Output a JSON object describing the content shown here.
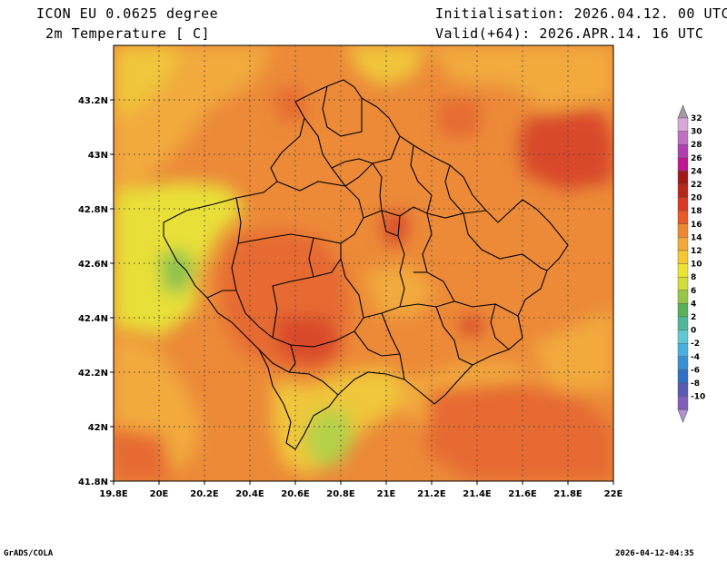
{
  "header": {
    "model": "ICON EU 0.0625 degree",
    "variable": "2m Temperature [ C]",
    "initialisation": "Initialisation: 2026.04.12. 00 UTC",
    "valid": "Valid(+64): 2026.APR.14. 16 UTC"
  },
  "footer": {
    "left": "GrADS/COLA",
    "right": "2026-04-12-04:35"
  },
  "map": {
    "lon_ticks": [
      "19.8E",
      "20E",
      "20.2E",
      "20.4E",
      "20.6E",
      "20.8E",
      "21E",
      "21.2E",
      "21.4E",
      "21.6E",
      "21.8E",
      "22E"
    ],
    "lat_ticks": [
      "43.2N",
      "43N",
      "42.8N",
      "42.6N",
      "42.4N",
      "42.2N",
      "42N",
      "41.8N"
    ],
    "lon_range": [
      19.8,
      22.0
    ],
    "lat_range": [
      41.8,
      43.4
    ],
    "grid": true
  },
  "legend": {
    "labels": [
      "32",
      "30",
      "28",
      "26",
      "24",
      "22",
      "20",
      "18",
      "16",
      "14",
      "12",
      "10",
      "8",
      "6",
      "4",
      "2",
      "0",
      "-2",
      "-4",
      "-6",
      "-8",
      "-10"
    ],
    "colors": [
      "#d8a8d8",
      "#c070c0",
      "#b040b0",
      "#c01890",
      "#a01818",
      "#b82818",
      "#d83a20",
      "#e85a28",
      "#ee8830",
      "#f3a83a",
      "#f4c832",
      "#ece430",
      "#d2dc3a",
      "#96c648",
      "#58b05a",
      "#50b898",
      "#5fc8d0",
      "#48b0e0",
      "#3890d0",
      "#3070c0",
      "#5a5ab4",
      "#8060b8"
    ],
    "arrow_top_color": "#a898a8",
    "arrow_bottom_color": "#b090d0"
  },
  "palette": {
    "t20": "#d84a2a",
    "t18": "#e66a32",
    "t16": "#ec8a38",
    "t14": "#f2aa3c",
    "t12": "#f0c63a",
    "t10": "#e8e038",
    "t8": "#b4d248",
    "t6": "#8cc250"
  }
}
